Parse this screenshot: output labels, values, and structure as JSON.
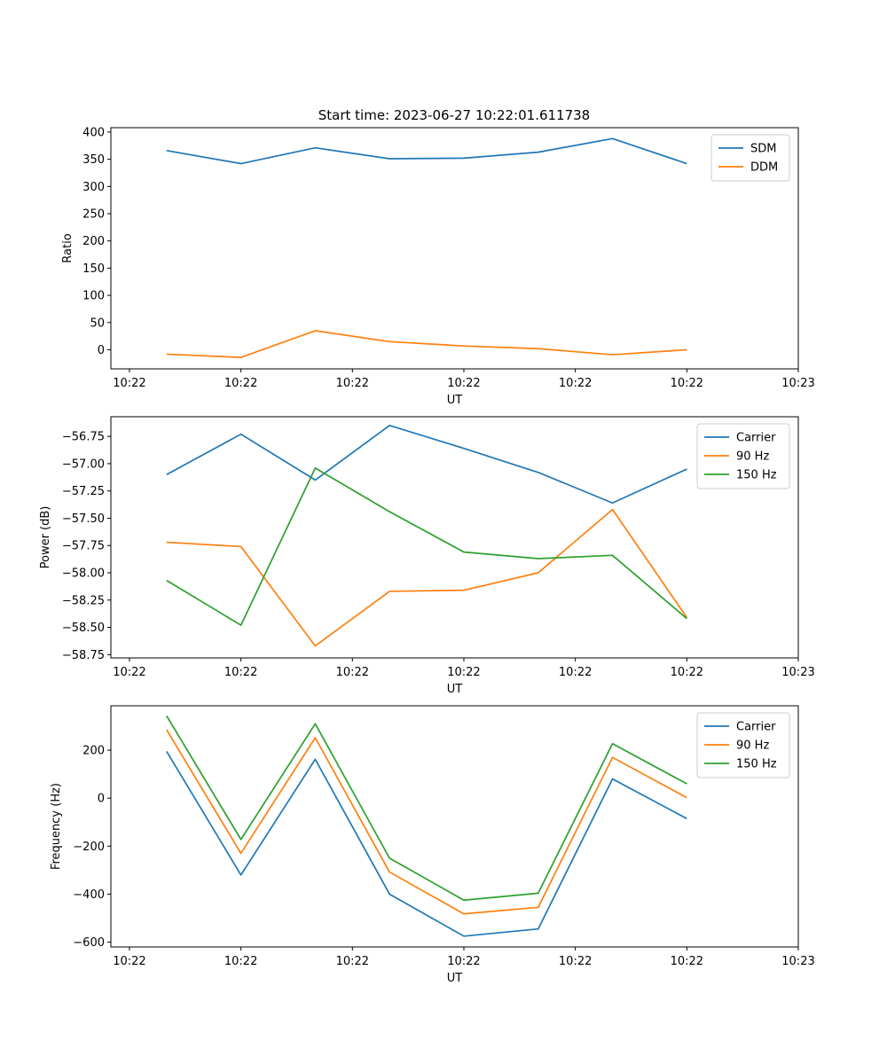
{
  "colors": {
    "c0": "#1f77b4",
    "c1": "#ff7f0e",
    "c2": "#2ca02c"
  },
  "chart_data": [
    {
      "type": "line",
      "title": "Start time: 2023-06-27 10:22:01.611738",
      "xlabel": "UT",
      "ylabel": "Ratio",
      "xlim": [
        -0.75,
        8.5
      ],
      "ylim": [
        -35,
        408
      ],
      "xticks": [
        -0.5,
        1,
        2.5,
        4,
        5.5,
        7,
        8.5
      ],
      "xtick_labels": [
        "10:22",
        "10:22",
        "10:22",
        "10:22",
        "10:22",
        "10:22",
        "10:23"
      ],
      "yticks": [
        0,
        50,
        100,
        150,
        200,
        250,
        300,
        350,
        400
      ],
      "legend": "upper-right",
      "grid": false,
      "x": [
        0,
        1,
        2,
        3,
        4,
        5,
        6,
        7
      ],
      "series": [
        {
          "name": "SDM",
          "color": "#1f77b4",
          "values": [
            366,
            342,
            371,
            351,
            352,
            363,
            388,
            342
          ]
        },
        {
          "name": "DDM",
          "color": "#ff7f0e",
          "values": [
            -8,
            -14,
            35,
            15,
            7,
            2,
            -9,
            0
          ]
        }
      ]
    },
    {
      "type": "line",
      "title": "",
      "xlabel": "UT",
      "ylabel": "Power (dB)",
      "xlim": [
        -0.75,
        8.5
      ],
      "ylim": [
        -58.78,
        -56.57
      ],
      "xticks": [
        -0.5,
        1,
        2.5,
        4,
        5.5,
        7,
        8.5
      ],
      "xtick_labels": [
        "10:22",
        "10:22",
        "10:22",
        "10:22",
        "10:22",
        "10:22",
        "10:23"
      ],
      "yticks": [
        -58.75,
        -58.5,
        -58.25,
        -58.0,
        -57.75,
        -57.5,
        -57.25,
        -57.0,
        -56.75
      ],
      "ytick_labels": [
        "−58.75",
        "−58.50",
        "−58.25",
        "−58.00",
        "−57.75",
        "−57.50",
        "−57.25",
        "−57.00",
        "−56.75"
      ],
      "legend": "upper-right",
      "grid": false,
      "x": [
        0,
        1,
        2,
        3,
        4,
        5,
        6,
        7
      ],
      "series": [
        {
          "name": "Carrier",
          "color": "#1f77b4",
          "values": [
            -57.1,
            -56.73,
            -57.15,
            -56.65,
            -56.86,
            -57.08,
            -57.36,
            -57.05
          ]
        },
        {
          "name": "90 Hz",
          "color": "#ff7f0e",
          "values": [
            -57.72,
            -57.76,
            -58.67,
            -58.17,
            -58.16,
            -58.0,
            -57.42,
            -58.41
          ]
        },
        {
          "name": "150 Hz",
          "color": "#2ca02c",
          "values": [
            -58.07,
            -58.48,
            -57.04,
            -57.44,
            -57.81,
            -57.87,
            -57.84,
            -58.42
          ]
        }
      ]
    },
    {
      "type": "line",
      "title": "",
      "xlabel": "UT",
      "ylabel": "Frequency (Hz)",
      "xlim": [
        -0.75,
        8.5
      ],
      "ylim": [
        -620,
        385
      ],
      "xticks": [
        -0.5,
        1,
        2.5,
        4,
        5.5,
        7,
        8.5
      ],
      "xtick_labels": [
        "10:22",
        "10:22",
        "10:22",
        "10:22",
        "10:22",
        "10:22",
        "10:23"
      ],
      "yticks": [
        -600,
        -400,
        -200,
        0,
        200
      ],
      "ytick_labels": [
        "−600",
        "−400",
        "−200",
        "0",
        "200"
      ],
      "legend": "upper-right",
      "grid": false,
      "x": [
        0,
        1,
        2,
        3,
        4,
        5,
        6,
        7
      ],
      "series": [
        {
          "name": "Carrier",
          "color": "#1f77b4",
          "values": [
            195,
            -320,
            162,
            -400,
            -575,
            -545,
            80,
            -85
          ]
        },
        {
          "name": "90 Hz",
          "color": "#ff7f0e",
          "values": [
            285,
            -230,
            252,
            -308,
            -482,
            -455,
            170,
            2
          ]
        },
        {
          "name": "150 Hz",
          "color": "#2ca02c",
          "values": [
            343,
            -172,
            310,
            -250,
            -425,
            -396,
            227,
            60
          ]
        }
      ]
    }
  ]
}
